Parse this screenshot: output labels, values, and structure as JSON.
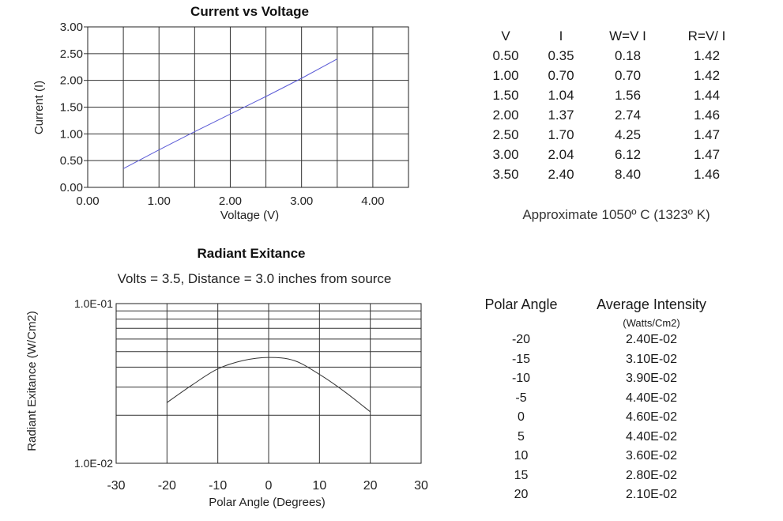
{
  "chart_data": [
    {
      "type": "line",
      "title": "Current vs Voltage",
      "xlabel": "Voltage (V)",
      "ylabel": "Current (I)",
      "xlim": [
        0,
        4.5
      ],
      "ylim": [
        0,
        3
      ],
      "x_ticks": [
        "0.00",
        "1.00",
        "2.00",
        "3.00",
        "4.00"
      ],
      "y_ticks": [
        "0.00",
        "0.50",
        "1.00",
        "1.50",
        "2.00",
        "2.50",
        "3.00"
      ],
      "grid": true,
      "line_color": "#5b5bd6",
      "x": [
        0.5,
        1.0,
        1.5,
        2.0,
        2.5,
        3.0,
        3.5
      ],
      "y": [
        0.35,
        0.7,
        1.04,
        1.37,
        1.7,
        2.04,
        2.4
      ]
    },
    {
      "type": "line",
      "title": "Radiant Exitance",
      "subtitle": "Volts = 3.5, Distance = 3.0 inches from source",
      "xlabel": "Polar Angle (Degrees)",
      "ylabel": "Radiant Exitance (W/Cm2)",
      "xlim": [
        -30,
        30
      ],
      "ylim": [
        0.01,
        0.1
      ],
      "y_scale": "log",
      "x_ticks": [
        "-30",
        "-20",
        "-10",
        "0",
        "10",
        "20",
        "30"
      ],
      "y_ticks": [
        "1.0E-02",
        "1.0E-01"
      ],
      "grid": true,
      "line_color": "#333333",
      "x": [
        -20,
        -15,
        -10,
        -5,
        0,
        5,
        10,
        15,
        20
      ],
      "y": [
        0.024,
        0.031,
        0.039,
        0.044,
        0.046,
        0.044,
        0.036,
        0.028,
        0.021
      ]
    }
  ],
  "iv_table": {
    "headers": [
      "V",
      "I",
      "W=V I",
      "R=V/ I"
    ],
    "rows": [
      [
        "0.50",
        "0.35",
        "0.18",
        "1.42"
      ],
      [
        "1.00",
        "0.70",
        "0.70",
        "1.42"
      ],
      [
        "1.50",
        "1.04",
        "1.56",
        "1.44"
      ],
      [
        "2.00",
        "1.37",
        "2.74",
        "1.46"
      ],
      [
        "2.50",
        "1.70",
        "4.25",
        "1.47"
      ],
      [
        "3.00",
        "2.04",
        "6.12",
        "1.47"
      ],
      [
        "3.50",
        "2.40",
        "8.40",
        "1.46"
      ]
    ]
  },
  "temperature_note": "Approximate 1050º C (1323º K)",
  "intensity_table": {
    "headers": [
      "Polar Angle",
      "Average Intensity"
    ],
    "units": "(Watts/Cm2)",
    "rows": [
      [
        "-20",
        "2.40E-02"
      ],
      [
        "-15",
        "3.10E-02"
      ],
      [
        "-10",
        "3.90E-02"
      ],
      [
        "-5",
        "4.40E-02"
      ],
      [
        "0",
        "4.60E-02"
      ],
      [
        "5",
        "4.40E-02"
      ],
      [
        "10",
        "3.60E-02"
      ],
      [
        "15",
        "2.80E-02"
      ],
      [
        "20",
        "2.10E-02"
      ]
    ]
  }
}
